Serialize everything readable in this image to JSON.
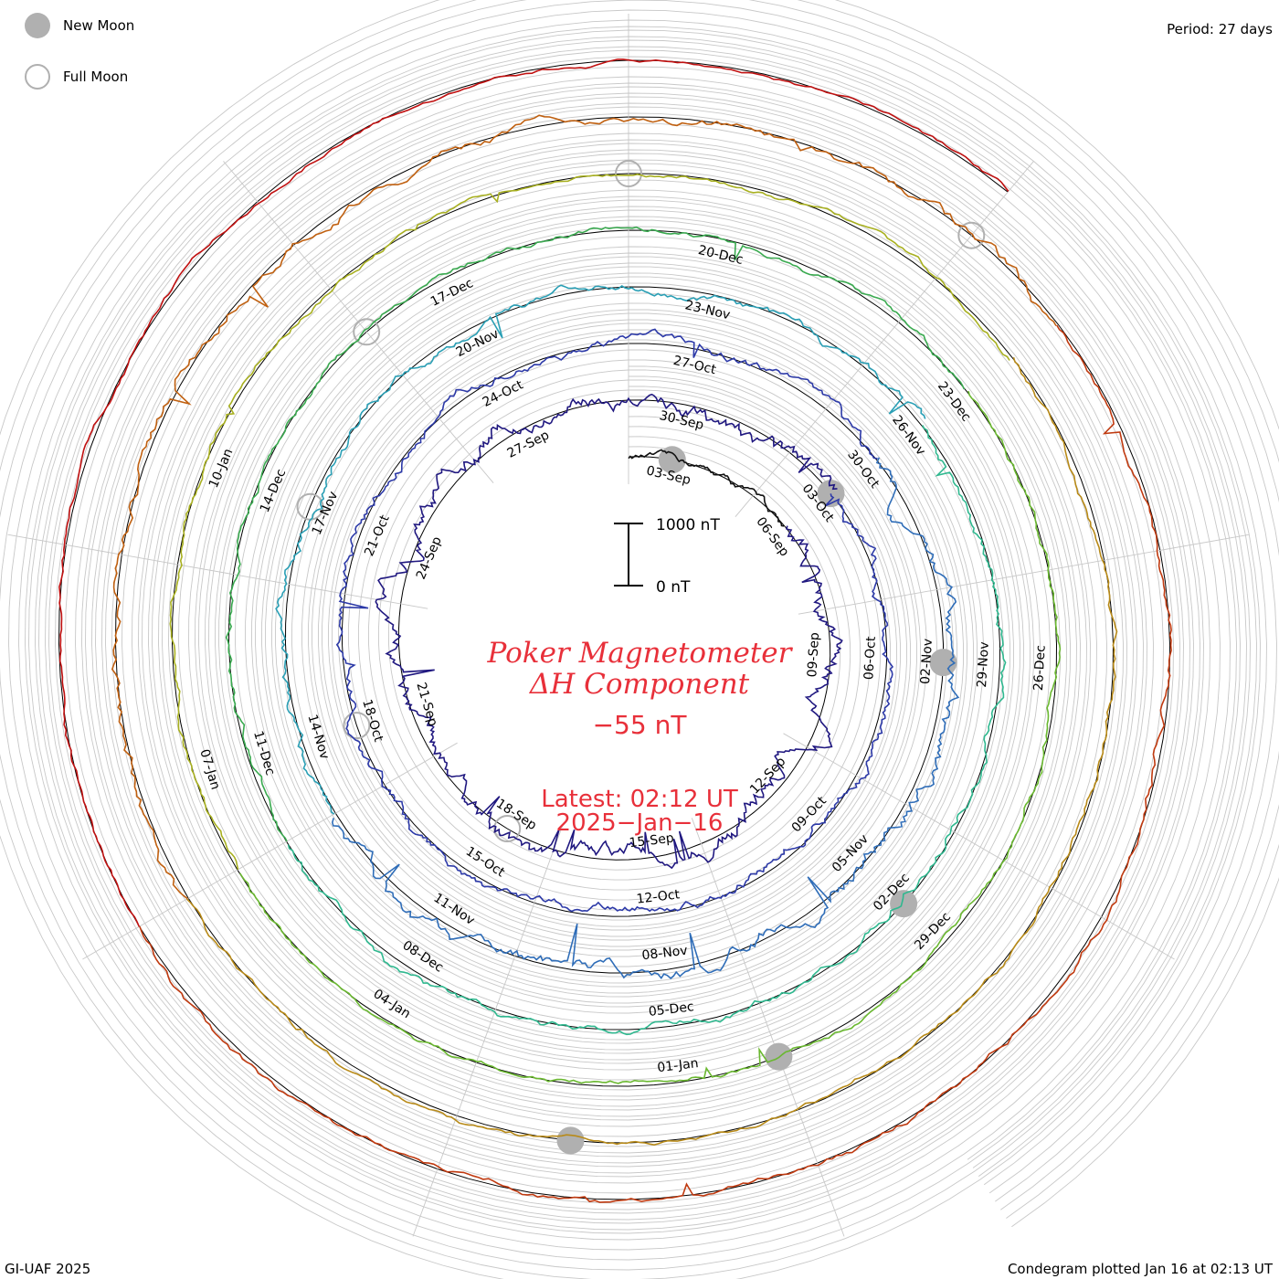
{
  "legend": {
    "new_moon_label": "New Moon",
    "full_moon_label": "Full Moon",
    "new_moon_color": "#b0b0b0",
    "full_moon_color": "#b0b0b0"
  },
  "period_label": "Period: 27 days",
  "footer_left": "GI-UAF 2025",
  "footer_right": "Condegram plotted Jan 16 at 02:13 UT",
  "title": {
    "line1": "Poker Magnetometer",
    "line2": "ΔH Component",
    "current_value": "−55 nT",
    "latest": "Latest: 02:12 UT",
    "date": "2025−Jan−16"
  },
  "colors": {
    "title": "#e8303a",
    "grid": "#c8c8c8",
    "baseline": "#000000"
  },
  "chart_data": {
    "type": "line",
    "projection": "condegram spiral",
    "title": "Poker Magnetometer ΔH Component",
    "period_days": 27,
    "scale_bar": {
      "top_label": "1000 nT",
      "bottom_label": "0 nT",
      "top_value": 1000,
      "bottom_value": 0
    },
    "date_labels": [
      "03-Sep",
      "06-Sep",
      "09-Sep",
      "12-Sep",
      "15-Sep",
      "18-Sep",
      "21-Sep",
      "24-Sep",
      "27-Sep",
      "30-Sep",
      "03-Oct",
      "06-Oct",
      "09-Oct",
      "12-Oct",
      "15-Oct",
      "18-Oct",
      "21-Oct",
      "24-Oct",
      "27-Oct",
      "30-Oct",
      "02-Nov",
      "05-Nov",
      "08-Nov",
      "11-Nov",
      "14-Nov",
      "17-Nov",
      "20-Nov",
      "23-Nov",
      "26-Nov",
      "29-Nov",
      "02-Dec",
      "05-Dec",
      "08-Dec",
      "11-Dec",
      "14-Dec",
      "17-Dec",
      "20-Dec",
      "23-Dec",
      "26-Dec",
      "29-Dec",
      "01-Jan",
      "04-Jan",
      "07-Jan",
      "10-Jan"
    ],
    "series": [
      {
        "color": "#111111",
        "start_day": 0,
        "end_day": 4,
        "activity": 0.35
      },
      {
        "color": "#201880",
        "start_day": 4,
        "end_day": 31,
        "activity": 0.9
      },
      {
        "color": "#2d3aa8",
        "start_day": 31,
        "end_day": 58,
        "activity": 0.55
      },
      {
        "color": "#2f6db8",
        "start_day": 58,
        "end_day": 72,
        "activity": 0.85
      },
      {
        "color": "#2a9fb5",
        "start_day": 72,
        "end_day": 85,
        "activity": 0.5
      },
      {
        "color": "#2fb88f",
        "start_day": 85,
        "end_day": 99,
        "activity": 0.45
      },
      {
        "color": "#3aaa50",
        "start_day": 99,
        "end_day": 112,
        "activity": 0.35
      },
      {
        "color": "#6ab830",
        "start_day": 112,
        "end_day": 126,
        "activity": 0.3
      },
      {
        "color": "#a8b020",
        "start_day": 126,
        "end_day": 139,
        "activity": 0.3
      },
      {
        "color": "#b88a18",
        "start_day": 139,
        "end_day": 153,
        "activity": 0.3
      },
      {
        "color": "#c06010",
        "start_day": 153,
        "end_day": 166,
        "activity": 0.6
      },
      {
        "color": "#c03a10",
        "start_day": 166,
        "end_day": 180,
        "activity": 0.35
      },
      {
        "color": "#c01010",
        "start_day": 180,
        "end_day": 192,
        "activity": 0.25
      }
    ],
    "new_moons": [
      1,
      31,
      61,
      91,
      120,
      149
    ],
    "full_moons": [
      16,
      46,
      76,
      105,
      135,
      165
    ]
  }
}
